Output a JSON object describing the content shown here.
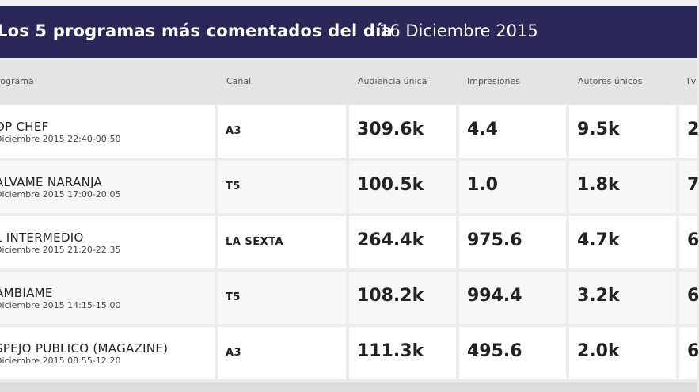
{
  "header": {
    "title": "Los 5 programas más comentados del día",
    "date": "16 Diciembre 2015"
  },
  "columns": [
    "rograma",
    "Canal",
    "Audiencia única",
    "Impresiones",
    "Autores únicos",
    "Tv"
  ],
  "rows": [
    {
      "name": "OP CHEF",
      "time": "Diciembre 2015 22:40-00:50",
      "channel": "A3",
      "audiencia": "309.6k",
      "impresiones": "4.4",
      "autores": "9.5k",
      "tv": "2"
    },
    {
      "name": "ALVAME NARANJA",
      "time": "Diciembre 2015 17:00-20:05",
      "channel": "T5",
      "audiencia": "100.5k",
      "impresiones": "1.0",
      "autores": "1.8k",
      "tv": "7"
    },
    {
      "name": "L INTERMEDIO",
      "time": "Diciembre 2015 21:20-22:35",
      "channel": "LA SEXTA",
      "audiencia": "264.4k",
      "impresiones": "975.6",
      "autores": "4.7k",
      "tv": "6"
    },
    {
      "name": "AMBIAME",
      "time": "Diciembre 2015 14:15-15:00",
      "channel": "T5",
      "audiencia": "108.2k",
      "impresiones": "994.4",
      "autores": "3.2k",
      "tv": "6"
    },
    {
      "name": "SPEJO PUBLICO (MAGAZINE)",
      "time": "Diciembre 2015 08:55-12:20",
      "channel": "A3",
      "audiencia": "111.3k",
      "impresiones": "495.6",
      "autores": "2.0k",
      "tv": "6"
    }
  ]
}
